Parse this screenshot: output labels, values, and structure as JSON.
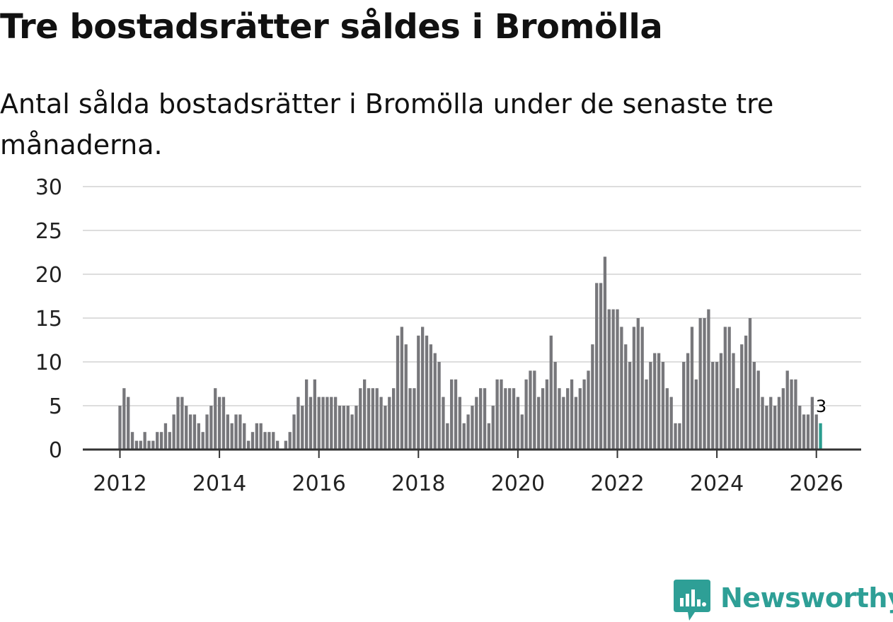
{
  "title": "Tre bostadsrätter såldes i Bromölla",
  "subtitle": "Antal sålda bostadsrätter i Bromölla under de senaste tre månaderna.",
  "brand": {
    "name": "Newsworthy",
    "color": "#2e9f96",
    "icon": "newsworthy-logo-icon"
  },
  "colors": {
    "bar": "#77777b",
    "highlight": "#2a9d8f",
    "grid": "#dddddd",
    "axis": "#333333"
  },
  "chart_data": {
    "type": "bar",
    "title": "Tre bostadsrätter såldes i Bromölla",
    "xlabel": "",
    "ylabel": "",
    "ylim": [
      0,
      30
    ],
    "yticks": [
      0,
      5,
      10,
      15,
      20,
      25,
      30
    ],
    "xticks": [
      2012,
      2014,
      2016,
      2018,
      2020,
      2022,
      2024,
      2026
    ],
    "x_start": "2012-01",
    "frequency": "monthly",
    "values": [
      5,
      7,
      6,
      2,
      1,
      1,
      2,
      1,
      1,
      2,
      2,
      3,
      2,
      4,
      6,
      6,
      5,
      4,
      4,
      3,
      2,
      4,
      5,
      7,
      6,
      6,
      4,
      3,
      4,
      4,
      3,
      1,
      2,
      3,
      3,
      2,
      2,
      2,
      1,
      0,
      1,
      2,
      4,
      6,
      5,
      8,
      6,
      8,
      6,
      6,
      6,
      6,
      6,
      5,
      5,
      5,
      4,
      5,
      7,
      8,
      7,
      7,
      7,
      6,
      5,
      6,
      7,
      13,
      14,
      12,
      7,
      7,
      13,
      14,
      13,
      12,
      11,
      10,
      6,
      3,
      8,
      8,
      6,
      3,
      4,
      5,
      6,
      7,
      7,
      3,
      5,
      8,
      8,
      7,
      7,
      7,
      6,
      4,
      8,
      9,
      9,
      6,
      7,
      8,
      13,
      10,
      7,
      6,
      7,
      8,
      6,
      7,
      8,
      9,
      12,
      19,
      19,
      22,
      16,
      16,
      16,
      14,
      12,
      10,
      14,
      15,
      14,
      8,
      10,
      11,
      11,
      10,
      7,
      6,
      3,
      3,
      10,
      11,
      14,
      8,
      15,
      15,
      16,
      10,
      10,
      11,
      14,
      14,
      11,
      7,
      12,
      13,
      15,
      10,
      9,
      6,
      5,
      6,
      5,
      6,
      7,
      9,
      8,
      8,
      5,
      4,
      4,
      6,
      4,
      3
    ],
    "highlight_last": true,
    "annotation": {
      "label": "3"
    }
  }
}
